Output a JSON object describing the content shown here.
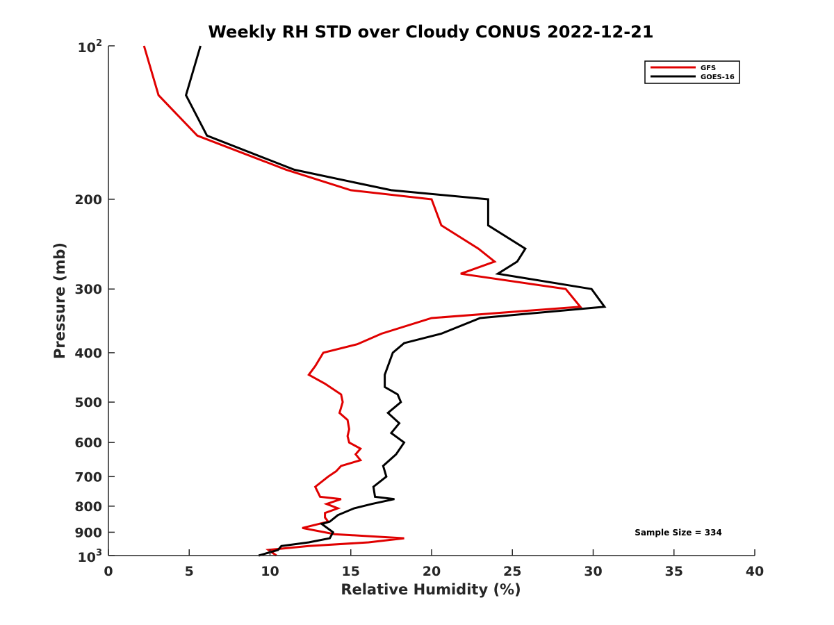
{
  "chart_data": {
    "type": "line",
    "title": "Weekly RH STD over Cloudy CONUS 2022-12-21",
    "xlabel": "Relative Humidity (%)",
    "ylabel": "Pressure (mb)",
    "xlim": [
      0,
      40
    ],
    "ylim": [
      100,
      1000
    ],
    "y_scale": "log",
    "y_reversed": true,
    "grid": false,
    "legend_position": "top-right",
    "x_ticks": [
      "0",
      "5",
      "10",
      "15",
      "20",
      "25",
      "30",
      "35",
      "40"
    ],
    "y_ticks": [
      {
        "value": 100,
        "base": "10",
        "exp": "2"
      },
      {
        "value": 200,
        "label": "200"
      },
      {
        "value": 300,
        "label": "300"
      },
      {
        "value": 400,
        "label": "400"
      },
      {
        "value": 500,
        "label": "500"
      },
      {
        "value": 600,
        "label": "600"
      },
      {
        "value": 700,
        "label": "700"
      },
      {
        "value": 800,
        "label": "800"
      },
      {
        "value": 900,
        "label": "900"
      },
      {
        "value": 1000,
        "base": "10",
        "exp": "3"
      }
    ],
    "annotation": "Sample Size = 334",
    "series": [
      {
        "name": "GFS",
        "color": "#e00000",
        "points": [
          [
            2.2,
            100
          ],
          [
            3.1,
            125
          ],
          [
            5.5,
            150
          ],
          [
            11.0,
            175
          ],
          [
            15.0,
            192
          ],
          [
            20.0,
            200
          ],
          [
            20.6,
            225
          ],
          [
            22.9,
            250
          ],
          [
            23.9,
            265
          ],
          [
            21.8,
            280
          ],
          [
            28.3,
            300
          ],
          [
            29.2,
            325
          ],
          [
            20.0,
            342
          ],
          [
            16.9,
            367
          ],
          [
            15.4,
            385
          ],
          [
            13.3,
            400
          ],
          [
            12.8,
            425
          ],
          [
            12.4,
            442
          ],
          [
            13.4,
            460
          ],
          [
            14.4,
            483
          ],
          [
            14.5,
            500
          ],
          [
            14.3,
            525
          ],
          [
            14.8,
            542
          ],
          [
            14.9,
            565
          ],
          [
            14.8,
            583
          ],
          [
            14.9,
            600
          ],
          [
            15.6,
            617
          ],
          [
            15.3,
            633
          ],
          [
            15.6,
            650
          ],
          [
            14.4,
            667
          ],
          [
            14.1,
            683
          ],
          [
            13.6,
            700
          ],
          [
            12.8,
            733
          ],
          [
            13.1,
            767
          ],
          [
            14.4,
            775
          ],
          [
            13.5,
            792
          ],
          [
            14.2,
            808
          ],
          [
            13.4,
            825
          ],
          [
            13.4,
            842
          ],
          [
            13.6,
            858
          ],
          [
            12.0,
            883
          ],
          [
            14.0,
            908
          ],
          [
            18.3,
            925
          ],
          [
            16.1,
            942
          ],
          [
            12.4,
            958
          ],
          [
            9.9,
            975
          ],
          [
            10.4,
            1000
          ]
        ]
      },
      {
        "name": "GOES-16",
        "color": "#000000",
        "points": [
          [
            5.7,
            100
          ],
          [
            4.8,
            125
          ],
          [
            6.1,
            150
          ],
          [
            11.5,
            175
          ],
          [
            17.5,
            192
          ],
          [
            23.5,
            200
          ],
          [
            23.5,
            225
          ],
          [
            25.8,
            250
          ],
          [
            25.3,
            265
          ],
          [
            24.1,
            280
          ],
          [
            29.9,
            300
          ],
          [
            30.7,
            325
          ],
          [
            23.0,
            342
          ],
          [
            20.6,
            367
          ],
          [
            18.3,
            383
          ],
          [
            17.6,
            400
          ],
          [
            17.1,
            442
          ],
          [
            17.1,
            467
          ],
          [
            17.9,
            483
          ],
          [
            18.1,
            500
          ],
          [
            17.3,
            525
          ],
          [
            18.0,
            550
          ],
          [
            17.5,
            575
          ],
          [
            18.3,
            600
          ],
          [
            17.8,
            633
          ],
          [
            17.0,
            667
          ],
          [
            17.2,
            700
          ],
          [
            16.4,
            733
          ],
          [
            16.5,
            767
          ],
          [
            17.7,
            775
          ],
          [
            16.3,
            792
          ],
          [
            15.2,
            808
          ],
          [
            14.2,
            833
          ],
          [
            13.7,
            858
          ],
          [
            13.2,
            867
          ],
          [
            13.9,
            900
          ],
          [
            13.7,
            925
          ],
          [
            12.4,
            942
          ],
          [
            10.7,
            958
          ],
          [
            10.5,
            975
          ],
          [
            9.3,
            1000
          ]
        ]
      }
    ]
  }
}
